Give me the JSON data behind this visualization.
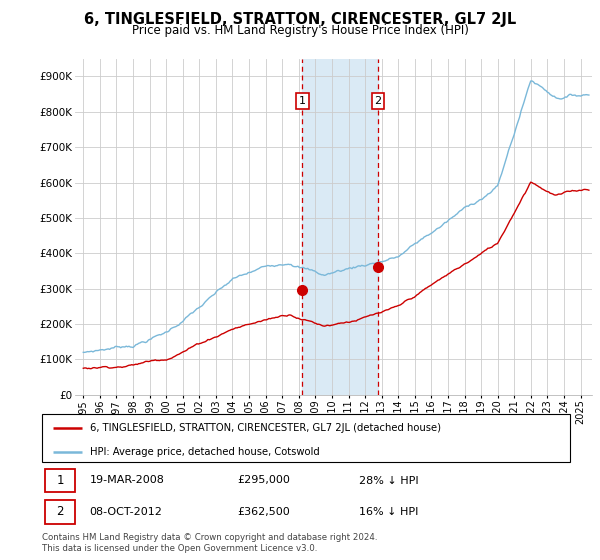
{
  "title": "6, TINGLESFIELD, STRATTON, CIRENCESTER, GL7 2JL",
  "subtitle": "Price paid vs. HM Land Registry's House Price Index (HPI)",
  "legend_line1": "6, TINGLESFIELD, STRATTON, CIRENCESTER, GL7 2JL (detached house)",
  "legend_line2": "HPI: Average price, detached house, Cotswold",
  "footer": "Contains HM Land Registry data © Crown copyright and database right 2024.\nThis data is licensed under the Open Government Licence v3.0.",
  "transaction1": {
    "num": "1",
    "date": "19-MAR-2008",
    "price": "£295,000",
    "hpi": "28% ↓ HPI"
  },
  "transaction2": {
    "num": "2",
    "date": "08-OCT-2012",
    "price": "£362,500",
    "hpi": "16% ↓ HPI"
  },
  "sale1_x": 2008.21,
  "sale1_y": 295000,
  "sale2_x": 2012.77,
  "sale2_y": 362500,
  "hpi_color": "#7ab8d9",
  "price_color": "#cc0000",
  "shade_color": "#daeaf5",
  "vline_color": "#cc0000",
  "ylim": [
    0,
    950000
  ],
  "yticks": [
    0,
    100000,
    200000,
    300000,
    400000,
    500000,
    600000,
    700000,
    800000,
    900000
  ],
  "ytick_labels": [
    "£0",
    "£100K",
    "£200K",
    "£300K",
    "£400K",
    "£500K",
    "£600K",
    "£700K",
    "£800K",
    "£900K"
  ],
  "xlim_start": 1994.5,
  "xlim_end": 2025.7,
  "xticks": [
    1995,
    1996,
    1997,
    1998,
    1999,
    2000,
    2001,
    2002,
    2003,
    2004,
    2005,
    2006,
    2007,
    2008,
    2009,
    2010,
    2011,
    2012,
    2013,
    2014,
    2015,
    2016,
    2017,
    2018,
    2019,
    2020,
    2021,
    2022,
    2023,
    2024,
    2025
  ],
  "background_color": "#ffffff",
  "grid_color": "#cccccc"
}
